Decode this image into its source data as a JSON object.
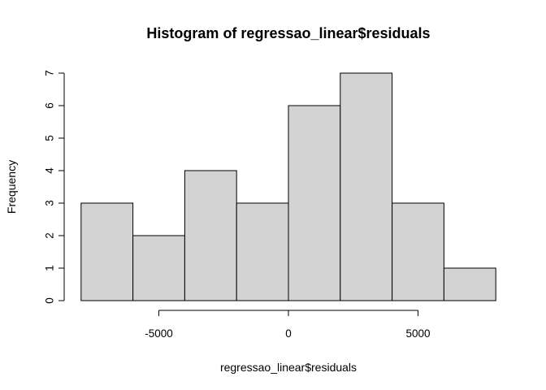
{
  "chart_data": {
    "type": "histogram",
    "title": "Histogram of regressao_linear$residuals",
    "xlabel": "regressao_linear$residuals",
    "ylabel": "Frequency",
    "bins": [
      {
        "from": -8000,
        "to": -6000,
        "count": 3
      },
      {
        "from": -6000,
        "to": -4000,
        "count": 2
      },
      {
        "from": -4000,
        "to": -2000,
        "count": 4
      },
      {
        "from": -2000,
        "to": 0,
        "count": 3
      },
      {
        "from": 0,
        "to": 2000,
        "count": 6
      },
      {
        "from": 2000,
        "to": 4000,
        "count": 7
      },
      {
        "from": 4000,
        "to": 6000,
        "count": 3
      },
      {
        "from": 6000,
        "to": 8000,
        "count": 1
      }
    ],
    "xlim": [
      -8000,
      8000
    ],
    "ylim": [
      0,
      7
    ],
    "x_ticks": [
      -5000,
      0,
      5000
    ],
    "x_tick_labels": [
      "-5000",
      "0",
      "5000"
    ],
    "y_ticks": [
      0,
      1,
      2,
      3,
      4,
      5,
      6,
      7
    ],
    "y_tick_labels": [
      "0",
      "1",
      "2",
      "3",
      "4",
      "5",
      "6",
      "7"
    ],
    "bar_color": "#d3d3d3",
    "border_color": "#000000",
    "grid": false,
    "legend": "none"
  }
}
